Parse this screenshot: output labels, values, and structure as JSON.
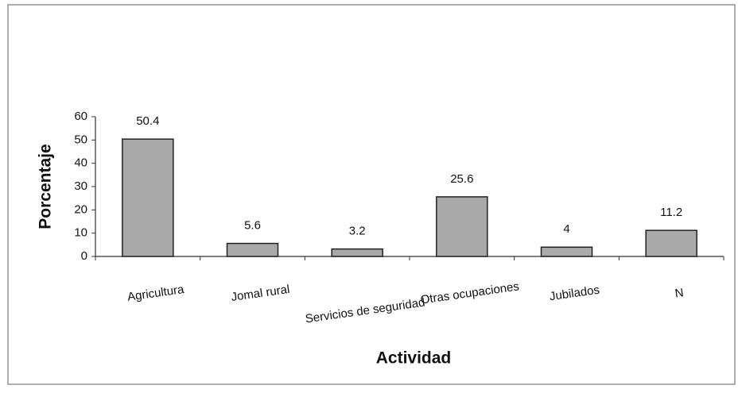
{
  "chart_data": {
    "type": "bar",
    "categories": [
      "Agricultura",
      "Jomal rural",
      "Servicios de seguridad",
      "Otras ocupaciones",
      "Jubilados",
      "N"
    ],
    "values": [
      50.4,
      5.6,
      3.2,
      25.6,
      4,
      11.2
    ],
    "color": "#a9a9a9",
    "y_label": "Porcentaje",
    "x_label": "Actividad",
    "ylim": [
      0,
      60
    ],
    "yticks": [
      0,
      10,
      20,
      30,
      40,
      50,
      60
    ],
    "grid": false
  }
}
